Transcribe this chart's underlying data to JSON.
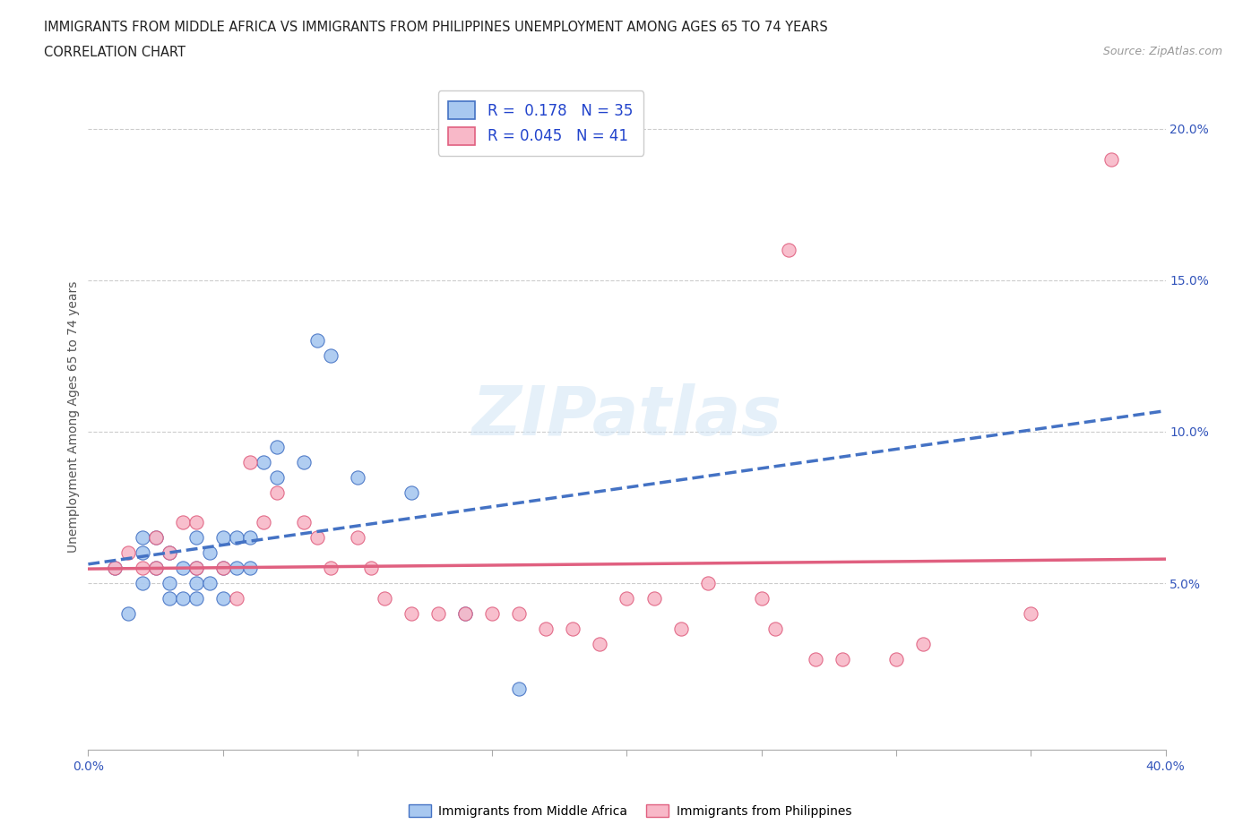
{
  "title_line1": "IMMIGRANTS FROM MIDDLE AFRICA VS IMMIGRANTS FROM PHILIPPINES UNEMPLOYMENT AMONG AGES 65 TO 74 YEARS",
  "title_line2": "CORRELATION CHART",
  "source_text": "Source: ZipAtlas.com",
  "ylabel": "Unemployment Among Ages 65 to 74 years",
  "xlim": [
    0.0,
    0.4
  ],
  "ylim": [
    -0.005,
    0.215
  ],
  "color_africa": "#a8c8f0",
  "color_philippines": "#f8b8c8",
  "color_africa_line": "#4472c4",
  "color_philippines_line": "#e06080",
  "R_africa": 0.178,
  "N_africa": 35,
  "R_philippines": 0.045,
  "N_philippines": 41,
  "africa_x": [
    0.01,
    0.015,
    0.02,
    0.02,
    0.02,
    0.025,
    0.025,
    0.03,
    0.03,
    0.03,
    0.035,
    0.035,
    0.04,
    0.04,
    0.04,
    0.04,
    0.045,
    0.045,
    0.05,
    0.05,
    0.05,
    0.055,
    0.055,
    0.06,
    0.06,
    0.065,
    0.07,
    0.07,
    0.08,
    0.085,
    0.09,
    0.1,
    0.12,
    0.14,
    0.16
  ],
  "africa_y": [
    0.055,
    0.04,
    0.05,
    0.06,
    0.065,
    0.055,
    0.065,
    0.045,
    0.05,
    0.06,
    0.045,
    0.055,
    0.045,
    0.05,
    0.055,
    0.065,
    0.05,
    0.06,
    0.045,
    0.055,
    0.065,
    0.055,
    0.065,
    0.055,
    0.065,
    0.09,
    0.085,
    0.095,
    0.09,
    0.13,
    0.125,
    0.085,
    0.08,
    0.04,
    0.015
  ],
  "philippines_x": [
    0.01,
    0.015,
    0.02,
    0.025,
    0.025,
    0.03,
    0.035,
    0.04,
    0.04,
    0.05,
    0.055,
    0.06,
    0.065,
    0.07,
    0.08,
    0.085,
    0.09,
    0.1,
    0.105,
    0.11,
    0.12,
    0.13,
    0.14,
    0.15,
    0.16,
    0.17,
    0.18,
    0.19,
    0.2,
    0.21,
    0.22,
    0.23,
    0.25,
    0.255,
    0.26,
    0.27,
    0.28,
    0.3,
    0.31,
    0.35,
    0.38
  ],
  "philippines_y": [
    0.055,
    0.06,
    0.055,
    0.055,
    0.065,
    0.06,
    0.07,
    0.055,
    0.07,
    0.055,
    0.045,
    0.09,
    0.07,
    0.08,
    0.07,
    0.065,
    0.055,
    0.065,
    0.055,
    0.045,
    0.04,
    0.04,
    0.04,
    0.04,
    0.04,
    0.035,
    0.035,
    0.03,
    0.045,
    0.045,
    0.035,
    0.05,
    0.045,
    0.035,
    0.16,
    0.025,
    0.025,
    0.025,
    0.03,
    0.04,
    0.19
  ]
}
